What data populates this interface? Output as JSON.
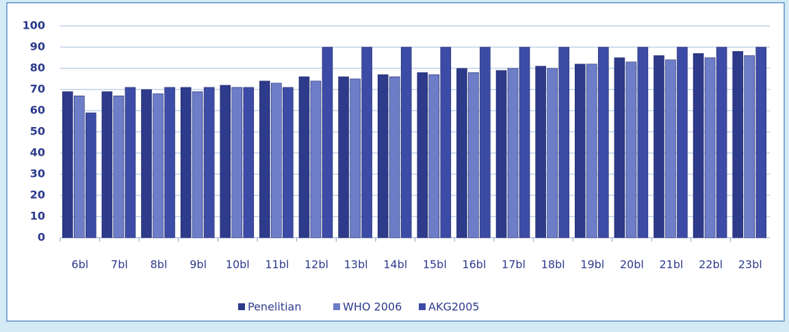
{
  "chart_data": {
    "type": "bar",
    "categories": [
      "6bl",
      "7bl",
      "8bl",
      "9bl",
      "10bl",
      "11bl",
      "12bl",
      "13bl",
      "14bl",
      "15bl",
      "16bl",
      "17bl",
      "18bl",
      "19bl",
      "20bl",
      "21bl",
      "22bl",
      "23bl"
    ],
    "series": [
      {
        "name": "Penelitian",
        "color": "#2e3a8a",
        "values": [
          69,
          69,
          70,
          71,
          72,
          74,
          76,
          76,
          77,
          78,
          80,
          79,
          81,
          82,
          85,
          86,
          87,
          88
        ]
      },
      {
        "name": "WHO 2006",
        "color": "#6d7dc8",
        "values": [
          67,
          67,
          68,
          69,
          71,
          73,
          74,
          75,
          76,
          77,
          78,
          80,
          80,
          82,
          83,
          84,
          85,
          86
        ]
      },
      {
        "name": "AKG2005",
        "color": "#3c4ca6",
        "values": [
          59,
          71,
          71,
          71,
          71,
          71,
          90,
          90,
          90,
          90,
          90,
          90,
          90,
          90,
          90,
          90,
          90,
          90
        ]
      }
    ],
    "ylim": [
      0,
      100
    ],
    "yticks": [
      0,
      10,
      20,
      30,
      40,
      50,
      60,
      70,
      80,
      90,
      100
    ],
    "grid": true,
    "legend": "bottom"
  }
}
